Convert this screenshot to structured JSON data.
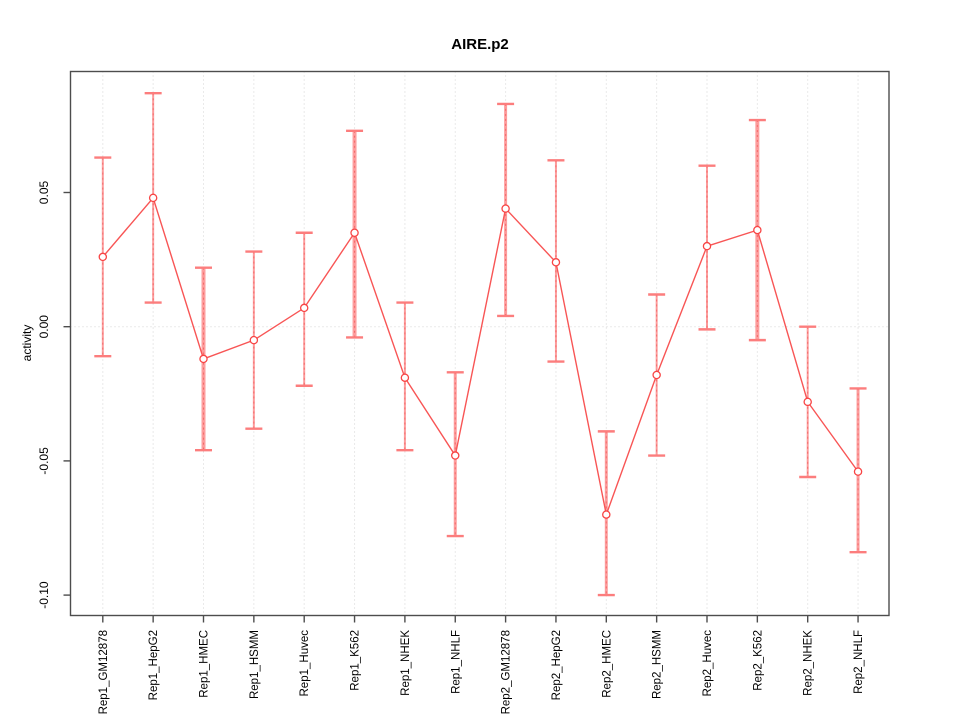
{
  "title": "AIRE.p2",
  "chart_data": {
    "type": "line",
    "title": "AIRE.p2",
    "xlabel": "",
    "ylabel": "activity",
    "legend_position": "none",
    "grid": "vertical dotted gridline at each category; horizontal dotted line at y=0",
    "marker": "open-circle",
    "error_bars": true,
    "categories": [
      "Rep1_GM12878",
      "Rep1_HepG2",
      "Rep1_HMEC",
      "Rep1_HSMM",
      "Rep1_Huvec",
      "Rep1_K562",
      "Rep1_NHEK",
      "Rep1_NHLF",
      "Rep2_GM12878",
      "Rep2_HepG2",
      "Rep2_HMEC",
      "Rep2_HSMM",
      "Rep2_Huvec",
      "Rep2_K562",
      "Rep2_NHEK",
      "Rep2_NHLF"
    ],
    "series": [
      {
        "name": "activity",
        "values": [
          0.026,
          0.048,
          -0.012,
          -0.005,
          0.007,
          0.035,
          -0.019,
          -0.048,
          0.044,
          0.024,
          -0.07,
          -0.018,
          0.03,
          0.036,
          -0.028,
          -0.054
        ],
        "lower": [
          -0.011,
          0.009,
          -0.046,
          -0.038,
          -0.022,
          -0.004,
          -0.046,
          -0.078,
          0.004,
          -0.013,
          -0.1,
          -0.048,
          -0.001,
          -0.005,
          -0.056,
          -0.084
        ],
        "upper": [
          0.063,
          0.087,
          0.022,
          0.028,
          0.035,
          0.073,
          0.009,
          -0.017,
          0.083,
          0.062,
          -0.039,
          0.012,
          0.06,
          0.077,
          0.0,
          -0.023
        ],
        "error_bar_weights": [
          2,
          2,
          4,
          2,
          2,
          4,
          2,
          3,
          3,
          2,
          3,
          2,
          2,
          4,
          2,
          3
        ]
      }
    ],
    "yticks": [
      0.05,
      0.0,
      -0.05,
      -0.1
    ],
    "ylim": [
      -0.108,
      0.095
    ],
    "colors": {
      "line": "#f85555",
      "marker_stroke": "#f84444",
      "marker_fill": "#ffffff",
      "error_bar": "#fc7d7d",
      "error_bar_core": "#f03a3a",
      "grid": "#d4d4d4",
      "axis": "#4d4d4d",
      "text": "#000000"
    }
  }
}
